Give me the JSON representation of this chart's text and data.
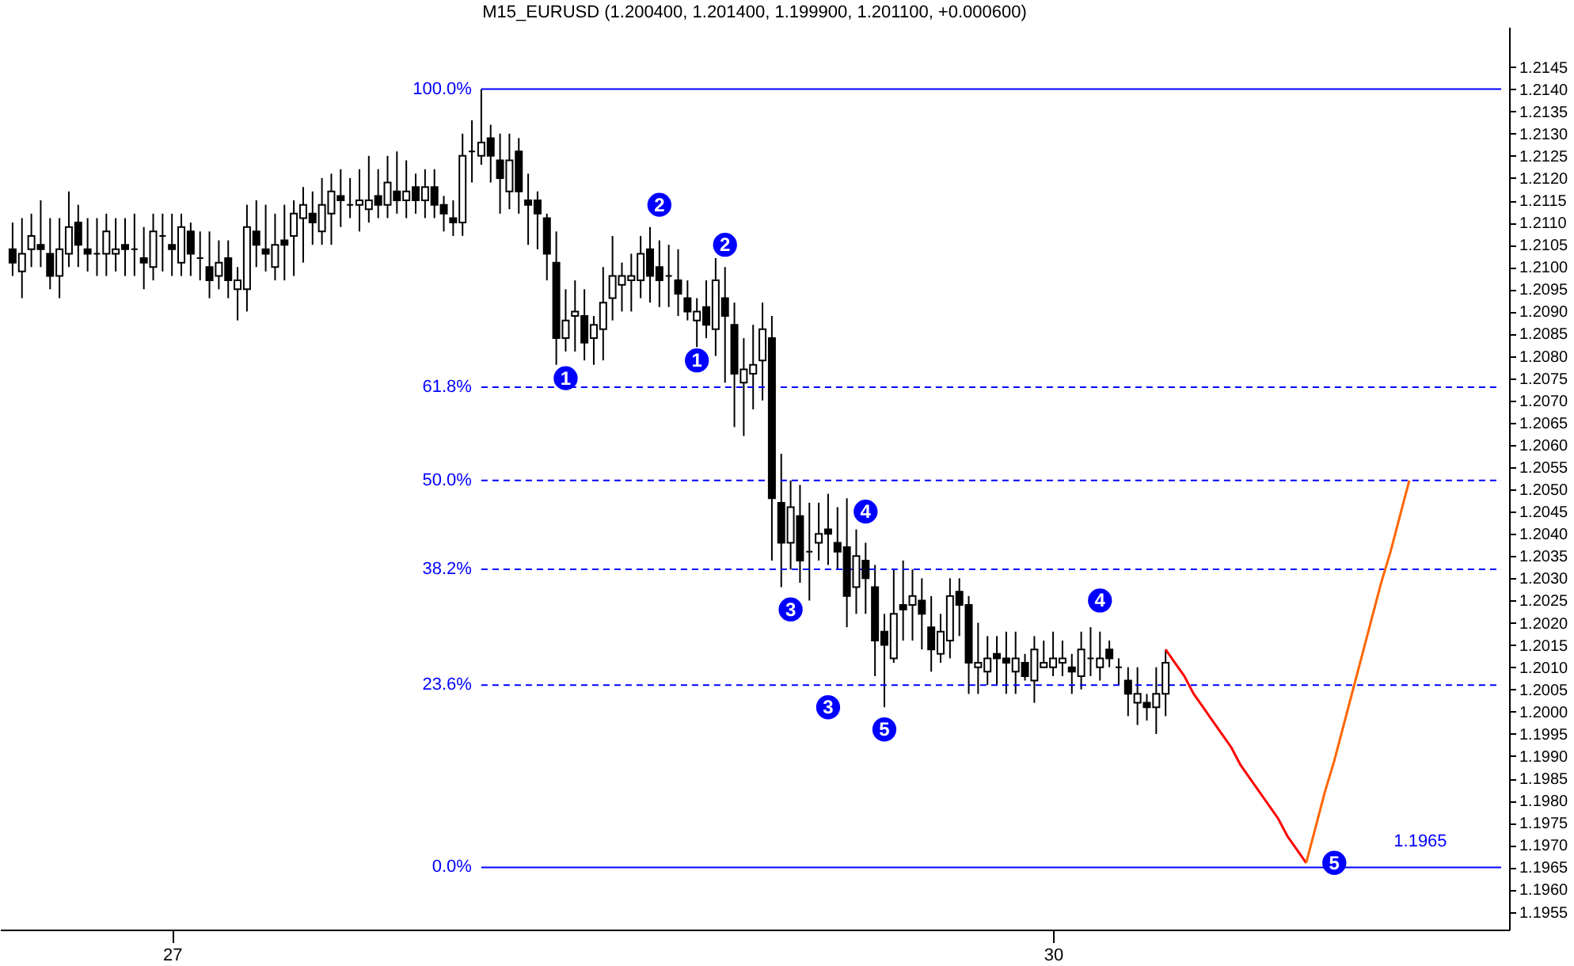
{
  "chart_data": {
    "type": "candlestick",
    "title": "M15_EURUSD (1.200400, 1.201400, 1.199900, 1.201100, +0.000600)",
    "categories": [
      null,
      null,
      null,
      null,
      null,
      null,
      null,
      null,
      null,
      null,
      null,
      null,
      null,
      null,
      null,
      null,
      null,
      "27",
      null,
      null,
      null,
      null,
      null,
      null,
      null,
      null,
      null,
      null,
      null,
      null,
      null,
      null,
      null,
      null,
      null,
      null,
      null,
      null,
      null,
      null,
      null,
      null,
      null,
      null,
      null,
      null,
      null,
      null,
      null,
      null,
      null,
      null,
      null,
      null,
      null,
      null,
      null,
      null,
      null,
      null,
      null,
      null,
      null,
      null,
      null,
      null,
      null,
      null,
      null,
      null,
      null,
      null,
      null,
      null,
      null,
      null,
      null,
      null,
      null,
      null,
      null,
      null,
      null,
      null,
      null,
      null,
      null,
      null,
      null,
      null,
      null,
      null,
      null,
      null,
      null,
      null,
      null,
      null,
      null,
      null,
      null,
      null,
      null,
      null,
      null,
      null,
      null,
      null,
      null,
      null,
      null,
      "30",
      null,
      null,
      null,
      null,
      null,
      null,
      null,
      null,
      null,
      null,
      null,
      null,
      null,
      null,
      null,
      null,
      null,
      null,
      null,
      null,
      null,
      null,
      null,
      null,
      null,
      null,
      null,
      null,
      null,
      null,
      null,
      null,
      null,
      null,
      null,
      null,
      null,
      null,
      null,
      null,
      null,
      null,
      null,
      null,
      null,
      null,
      null
    ],
    "ohlc": [
      [
        1.2104,
        1.211,
        1.2098,
        1.2101
      ],
      [
        1.2099,
        1.2111,
        1.2093,
        1.2103
      ],
      [
        1.2104,
        1.2112,
        1.21,
        1.2107
      ],
      [
        1.2105,
        1.2115,
        1.21,
        1.2104
      ],
      [
        1.2103,
        1.2111,
        1.2095,
        1.2098
      ],
      [
        1.2098,
        1.2111,
        1.2093,
        1.2104
      ],
      [
        1.2103,
        1.2117,
        1.21,
        1.2109
      ],
      [
        1.211,
        1.2114,
        1.21,
        1.2105
      ],
      [
        1.2104,
        1.2111,
        1.2099,
        1.2103
      ],
      [
        1.2103,
        1.2111,
        1.2098,
        1.2103
      ],
      [
        1.2103,
        1.2112,
        1.2098,
        1.2108
      ],
      [
        1.2103,
        1.2111,
        1.2099,
        1.2104
      ],
      [
        1.2105,
        1.2111,
        1.2098,
        1.2104
      ],
      [
        1.2104,
        1.2112,
        1.2098,
        1.2104
      ],
      [
        1.2102,
        1.2109,
        1.2095,
        1.2101
      ],
      [
        1.21,
        1.2112,
        1.2097,
        1.2108
      ],
      [
        1.2107,
        1.2112,
        1.2099,
        1.2107
      ],
      [
        1.2105,
        1.2112,
        1.2098,
        1.2104
      ],
      [
        1.2101,
        1.2112,
        1.2098,
        1.2109
      ],
      [
        1.2108,
        1.211,
        1.2098,
        1.2103
      ],
      [
        1.2102,
        1.2108,
        1.2097,
        1.2102
      ],
      [
        1.21,
        1.2108,
        1.2093,
        1.2097
      ],
      [
        1.2098,
        1.2106,
        1.2095,
        1.2101
      ],
      [
        1.2102,
        1.2106,
        1.2093,
        1.2097
      ],
      [
        1.2095,
        1.21,
        1.2088,
        1.2097
      ],
      [
        1.2095,
        1.2114,
        1.209,
        1.2109
      ],
      [
        1.2108,
        1.2115,
        1.21,
        1.2105
      ],
      [
        1.2104,
        1.2114,
        1.2099,
        1.2103
      ],
      [
        1.21,
        1.2112,
        1.2097,
        1.2105
      ],
      [
        1.2106,
        1.2114,
        1.2097,
        1.2105
      ],
      [
        1.2107,
        1.2115,
        1.2098,
        1.2112
      ],
      [
        1.2111,
        1.2118,
        1.2101,
        1.2114
      ],
      [
        1.2112,
        1.2117,
        1.2105,
        1.211
      ],
      [
        1.2108,
        1.212,
        1.2105,
        1.2114
      ],
      [
        1.2112,
        1.2121,
        1.2105,
        1.2117
      ],
      [
        1.2116,
        1.2122,
        1.2109,
        1.2115
      ],
      [
        1.2114,
        1.212,
        1.2111,
        1.2114
      ],
      [
        1.2114,
        1.2122,
        1.2108,
        1.2115
      ],
      [
        1.2113,
        1.2125,
        1.211,
        1.2115
      ],
      [
        1.2116,
        1.2122,
        1.2111,
        1.2114
      ],
      [
        1.2114,
        1.2125,
        1.2111,
        1.2119
      ],
      [
        1.2117,
        1.2126,
        1.2112,
        1.2115
      ],
      [
        1.2115,
        1.2124,
        1.2111,
        1.2117
      ],
      [
        1.2118,
        1.2121,
        1.2112,
        1.2115
      ],
      [
        1.2115,
        1.2122,
        1.2111,
        1.2118
      ],
      [
        1.2118,
        1.2122,
        1.2111,
        1.2114
      ],
      [
        1.2114,
        1.2116,
        1.2108,
        1.2112
      ],
      [
        1.2111,
        1.2115,
        1.2107,
        1.211
      ],
      [
        1.211,
        1.213,
        1.2107,
        1.2125
      ],
      [
        1.2126,
        1.2133,
        1.2119,
        1.2126
      ],
      [
        1.2125,
        1.214,
        1.2123,
        1.2128
      ],
      [
        1.2129,
        1.2132,
        1.2119,
        1.2125
      ],
      [
        1.2124,
        1.213,
        1.2112,
        1.212
      ],
      [
        1.2117,
        1.213,
        1.2113,
        1.2124
      ],
      [
        1.2126,
        1.2129,
        1.2112,
        1.2117
      ],
      [
        1.2115,
        1.2121,
        1.2105,
        1.2114
      ],
      [
        1.2115,
        1.2117,
        1.2104,
        1.2112
      ],
      [
        1.2111,
        1.2112,
        1.2097,
        1.2103
      ],
      [
        1.2101,
        1.2108,
        1.2078,
        1.2084
      ],
      [
        1.2084,
        1.2095,
        1.2081,
        1.2088
      ],
      [
        1.2089,
        1.2097,
        1.2081,
        1.209
      ],
      [
        1.2089,
        1.2095,
        1.2079,
        1.2083
      ],
      [
        1.2084,
        1.2089,
        1.2078,
        1.2087
      ],
      [
        1.2086,
        1.21,
        1.2079,
        1.2092
      ],
      [
        1.2093,
        1.2107,
        1.2088,
        1.2098
      ],
      [
        1.2096,
        1.2101,
        1.209,
        1.2098
      ],
      [
        1.2097,
        1.2103,
        1.209,
        1.2098
      ],
      [
        1.2097,
        1.2107,
        1.2093,
        1.2103
      ],
      [
        1.2104,
        1.2109,
        1.2092,
        1.2098
      ],
      [
        1.21,
        1.2106,
        1.2091,
        1.2097
      ],
      [
        1.2098,
        1.2105,
        1.2091,
        1.2098
      ],
      [
        1.2097,
        1.2104,
        1.2089,
        1.2094
      ],
      [
        1.2093,
        1.2097,
        1.2088,
        1.209
      ],
      [
        1.2088,
        1.2093,
        1.2082,
        1.209
      ],
      [
        1.2091,
        1.2097,
        1.2084,
        1.2087
      ],
      [
        1.2086,
        1.2102,
        1.208,
        1.2097
      ],
      [
        1.2093,
        1.21,
        1.2074,
        1.2089
      ],
      [
        1.2087,
        1.2092,
        1.2064,
        1.2076
      ],
      [
        1.2074,
        1.2084,
        1.2062,
        1.2077
      ],
      [
        1.2076,
        1.2087,
        1.2068,
        1.2078
      ],
      [
        1.2079,
        1.2092,
        1.207,
        1.2086
      ],
      [
        1.2084,
        1.2089,
        1.2034,
        1.2048
      ],
      [
        1.2047,
        1.2058,
        1.2028,
        1.2038
      ],
      [
        1.2038,
        1.2052,
        1.2032,
        1.2046
      ],
      [
        1.2044,
        1.2051,
        1.2029,
        1.2034
      ],
      [
        1.2036,
        1.2047,
        1.2025,
        1.2036
      ],
      [
        1.2038,
        1.2047,
        1.2034,
        1.204
      ],
      [
        1.2041,
        1.2049,
        1.2033,
        1.204
      ],
      [
        1.2038,
        1.2046,
        1.2032,
        1.2036
      ],
      [
        1.2037,
        1.2048,
        1.2019,
        1.2026
      ],
      [
        1.2028,
        1.2041,
        1.2022,
        1.2035
      ],
      [
        1.2034,
        1.2038,
        1.2022,
        1.203
      ],
      [
        1.2028,
        1.2033,
        1.2008,
        1.2016
      ],
      [
        1.2018,
        1.2022,
        1.2001,
        1.2015
      ],
      [
        1.2012,
        1.2032,
        1.2011,
        1.2022
      ],
      [
        1.2024,
        1.2034,
        1.2016,
        1.2023
      ],
      [
        1.2024,
        1.2032,
        1.2016,
        1.2026
      ],
      [
        1.2025,
        1.203,
        1.2014,
        1.2022
      ],
      [
        1.2019,
        1.2026,
        1.2009,
        1.2014
      ],
      [
        1.2013,
        1.2022,
        1.2011,
        1.2018
      ],
      [
        1.2016,
        1.203,
        1.2012,
        1.2026
      ],
      [
        1.2027,
        1.203,
        1.2017,
        1.2024
      ],
      [
        1.2024,
        1.2026,
        1.2004,
        1.2011
      ],
      [
        1.201,
        1.202,
        1.2004,
        1.2011
      ],
      [
        1.2009,
        1.2017,
        1.2006,
        1.2012
      ],
      [
        1.2013,
        1.2017,
        1.2006,
        1.2012
      ],
      [
        1.2012,
        1.2018,
        1.2004,
        1.2011
      ],
      [
        1.2009,
        1.2018,
        1.2004,
        1.2012
      ],
      [
        1.2011,
        1.2013,
        1.2007,
        1.2008
      ],
      [
        1.2007,
        1.2017,
        1.2002,
        1.2014
      ],
      [
        1.201,
        1.2016,
        1.201,
        1.2011
      ],
      [
        1.201,
        1.2018,
        1.2008,
        1.2012
      ],
      [
        1.2011,
        1.2016,
        1.2008,
        1.2012
      ],
      [
        1.201,
        1.2013,
        1.2004,
        1.2009
      ],
      [
        1.2008,
        1.2018,
        1.2005,
        1.2014
      ],
      [
        1.2012,
        1.2019,
        1.2008,
        1.2012
      ],
      [
        1.201,
        1.2018,
        1.2007,
        1.2012
      ],
      [
        1.2014,
        1.2016,
        1.201,
        1.2012
      ],
      [
        1.201,
        1.2012,
        1.2006,
        1.201
      ],
      [
        1.2007,
        1.201,
        1.1999,
        1.2004
      ],
      [
        1.2002,
        1.201,
        1.1997,
        1.2004
      ],
      [
        1.2002,
        1.2004,
        1.1998,
        1.2001
      ],
      [
        1.2001,
        1.201,
        1.1995,
        1.2004
      ],
      [
        1.2004,
        1.2014,
        1.1999,
        1.2011
      ],
      null,
      null,
      null,
      null,
      null,
      null,
      null,
      null,
      null,
      null,
      null,
      null,
      null,
      null,
      null,
      null,
      null,
      null,
      null,
      null,
      null,
      null,
      null,
      null,
      null,
      null,
      null,
      null,
      null,
      null,
      null,
      null,
      null,
      null,
      null
    ],
    "series": [
      {
        "type": "line",
        "color": "#ff0000",
        "values": [
          null,
          null,
          null,
          null,
          null,
          null,
          null,
          null,
          null,
          null,
          null,
          null,
          null,
          null,
          null,
          null,
          null,
          null,
          null,
          null,
          null,
          null,
          null,
          null,
          null,
          null,
          null,
          null,
          null,
          null,
          null,
          null,
          null,
          null,
          null,
          null,
          null,
          null,
          null,
          null,
          null,
          null,
          null,
          null,
          null,
          null,
          null,
          null,
          null,
          null,
          null,
          null,
          null,
          null,
          null,
          null,
          null,
          null,
          null,
          null,
          null,
          null,
          null,
          null,
          null,
          null,
          null,
          null,
          null,
          null,
          null,
          null,
          null,
          null,
          null,
          null,
          null,
          null,
          null,
          null,
          null,
          null,
          null,
          null,
          null,
          null,
          null,
          null,
          null,
          null,
          null,
          null,
          null,
          null,
          null,
          null,
          null,
          null,
          null,
          null,
          null,
          null,
          null,
          null,
          null,
          null,
          null,
          null,
          null,
          null,
          null,
          null,
          null,
          null,
          null,
          null,
          null,
          null,
          null,
          null,
          null,
          null,
          null,
          1.2014,
          1.2011,
          1.2008,
          1.2004,
          1.2001,
          1.1998,
          1.1995,
          1.1992,
          1.1988,
          1.1985,
          1.1982,
          1.1979,
          1.1976,
          1.1972,
          1.1969,
          1.1966,
          null,
          null,
          null,
          null,
          null,
          null,
          null,
          null,
          null,
          null,
          null,
          null,
          null,
          null,
          null,
          null,
          null,
          null,
          null,
          null
        ]
      },
      {
        "type": "line",
        "color": "#ff6600",
        "values": [
          null,
          null,
          null,
          null,
          null,
          null,
          null,
          null,
          null,
          null,
          null,
          null,
          null,
          null,
          null,
          null,
          null,
          null,
          null,
          null,
          null,
          null,
          null,
          null,
          null,
          null,
          null,
          null,
          null,
          null,
          null,
          null,
          null,
          null,
          null,
          null,
          null,
          null,
          null,
          null,
          null,
          null,
          null,
          null,
          null,
          null,
          null,
          null,
          null,
          null,
          null,
          null,
          null,
          null,
          null,
          null,
          null,
          null,
          null,
          null,
          null,
          null,
          null,
          null,
          null,
          null,
          null,
          null,
          null,
          null,
          null,
          null,
          null,
          null,
          null,
          null,
          null,
          null,
          null,
          null,
          null,
          null,
          null,
          null,
          null,
          null,
          null,
          null,
          null,
          null,
          null,
          null,
          null,
          null,
          null,
          null,
          null,
          null,
          null,
          null,
          null,
          null,
          null,
          null,
          null,
          null,
          null,
          null,
          null,
          null,
          null,
          null,
          null,
          null,
          null,
          null,
          null,
          null,
          null,
          null,
          null,
          null,
          null,
          null,
          null,
          null,
          null,
          null,
          null,
          null,
          null,
          null,
          null,
          null,
          null,
          null,
          null,
          null,
          1.1966,
          1.1974,
          1.1982,
          1.1989,
          1.1997,
          1.2005,
          1.2013,
          1.2021,
          1.2029,
          1.2036,
          1.2044,
          1.2052,
          null,
          null,
          null,
          null,
          null,
          null,
          null,
          null,
          null
        ]
      }
    ],
    "ylim": [
      1.1951,
      1.2154
    ],
    "yticks": [
      1.1955,
      {
        "value": 1.196,
        "label": "1.1960"
      },
      1.1965,
      {
        "value": 1.197,
        "label": "1.1970"
      },
      1.1975,
      {
        "value": 1.198,
        "label": "1.1980"
      },
      1.1985,
      {
        "value": 1.199,
        "label": "1.1990"
      },
      1.1995,
      {
        "value": 1.2,
        "label": "1.2000"
      },
      1.2005,
      {
        "value": 1.201,
        "label": "1.2010"
      },
      1.2015,
      {
        "value": 1.202,
        "label": "1.2020"
      },
      1.2025,
      {
        "value": 1.203,
        "label": "1.2030"
      },
      1.2035,
      {
        "value": 1.204,
        "label": "1.2040"
      },
      1.2045,
      {
        "value": 1.205,
        "label": "1.2050"
      },
      1.2055,
      {
        "value": 1.206,
        "label": "1.2060"
      },
      1.2065,
      {
        "value": 1.207,
        "label": "1.2070"
      },
      1.2075,
      {
        "value": 1.208,
        "label": "1.2080"
      },
      1.2085,
      {
        "value": 1.209,
        "label": "1.2090"
      },
      1.2095,
      {
        "value": 1.21,
        "label": "1.2100"
      },
      1.2105,
      {
        "value": 1.211,
        "label": "1.2110"
      },
      1.2115,
      {
        "value": 1.212,
        "label": "1.2120"
      },
      1.2125,
      {
        "value": 1.213,
        "label": "1.2130"
      },
      1.2135,
      {
        "value": 1.214,
        "label": "1.2140"
      },
      1.2145
    ],
    "ref_lines": [
      {
        "axis": "y",
        "value": 1.214,
        "color": "#0000ff",
        "line_style": "solid"
      },
      {
        "axis": "y",
        "value": 1.2073,
        "color": "#0000ff",
        "line_style": "dashed"
      },
      {
        "axis": "y",
        "value": 1.2052,
        "color": "#0000ff",
        "line_style": "dashed"
      },
      {
        "axis": "y",
        "value": 1.2032,
        "color": "#0000ff",
        "line_style": "dashed"
      },
      {
        "axis": "y",
        "value": 1.2006,
        "color": "#0000ff",
        "line_style": "dashed"
      },
      {
        "axis": "y",
        "value": 1.1965,
        "color": "#0000ff",
        "line_style": "solid"
      }
    ],
    "annotations": [
      "100.0%",
      "61.8%",
      "50.0%",
      "38.2%",
      "23.6%",
      "0.0%",
      {
        "text": "1",
        "y": 1.2075
      },
      {
        "text": "2",
        "y": 1.2114
      },
      {
        "text": "1",
        "y": 1.2079
      },
      {
        "text": "2",
        "y": 1.2105
      },
      {
        "text": "3",
        "y": 1.2023
      },
      {
        "text": "4",
        "y": 1.2045
      },
      {
        "text": "3",
        "y": 1.2001
      },
      {
        "text": "5",
        "y": 1.1996
      },
      {
        "text": "4",
        "y": 1.2025
      },
      {
        "text": "5",
        "y": 1.1966
      },
      "1.1965"
    ],
    "grid": false
  }
}
